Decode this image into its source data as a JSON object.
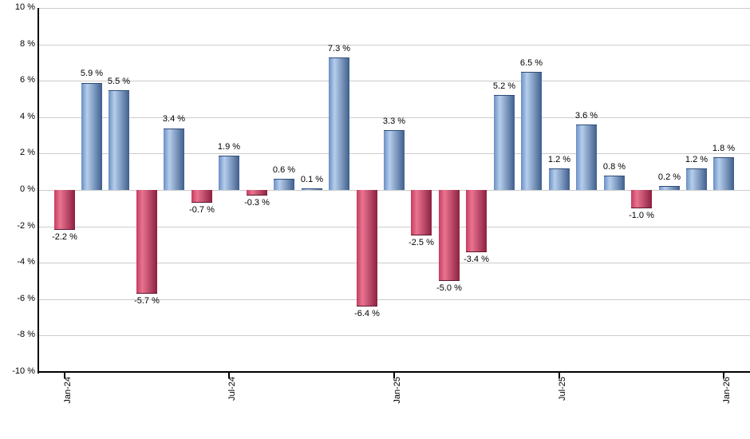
{
  "chart_data": {
    "type": "bar",
    "title": "",
    "xlabel": "",
    "ylabel": "",
    "unit": "%",
    "ylim": [
      -10,
      10
    ],
    "grid": true,
    "legend": "none",
    "categories": [
      "Jan-24",
      "Feb-24",
      "Mar-24",
      "Apr-24",
      "May-24",
      "Jun-24",
      "Jul-24",
      "Aug-24",
      "Sep-24",
      "Oct-24",
      "Nov-24",
      "Dec-24",
      "Jan-25",
      "Feb-25",
      "Mar-25",
      "Apr-25",
      "May-25",
      "Jun-25",
      "Jul-25",
      "Aug-25",
      "Sep-25",
      "Oct-25",
      "Nov-25",
      "Dec-25",
      "Jan-26"
    ],
    "values": [
      -2.2,
      5.9,
      5.5,
      -5.7,
      3.4,
      -0.7,
      1.9,
      -0.3,
      0.6,
      0.1,
      7.3,
      -6.4,
      3.3,
      -2.5,
      -5.0,
      -3.4,
      5.2,
      6.5,
      1.2,
      3.6,
      0.8,
      -1.0,
      0.2,
      1.2,
      1.8
    ],
    "bar_labels": [
      "-2.2 %",
      "5.9 %",
      "5.5 %",
      "-5.7 %",
      "3.4 %",
      "-0.7 %",
      "1.9 %",
      "-0.3 %",
      "0.6 %",
      "0.1 %",
      "7.3 %",
      "-6.4 %",
      "3.3 %",
      "-2.5 %",
      "-5.0 %",
      "-3.4 %",
      "5.2 %",
      "6.5 %",
      "1.2 %",
      "3.6 %",
      "0.8 %",
      "-1.0 %",
      "0.2 %",
      "1.2 %",
      "1.8 %"
    ],
    "y_axis": {
      "ticks": [
        {
          "value": 10,
          "label": "10 %"
        },
        {
          "value": 8,
          "label": "8 %"
        },
        {
          "value": 6,
          "label": "6 %"
        },
        {
          "value": 4,
          "label": "4 %"
        },
        {
          "value": 2,
          "label": "2 %"
        },
        {
          "value": 0,
          "label": "0 %"
        },
        {
          "value": -2,
          "label": "-2 %"
        },
        {
          "value": -4,
          "label": "-4 %"
        },
        {
          "value": -6,
          "label": "-6 %"
        },
        {
          "value": -8,
          "label": "-8 %"
        },
        {
          "value": -10,
          "label": "-10 %"
        }
      ]
    },
    "x_axis": {
      "ticks": [
        {
          "month": 0,
          "label": "Jan-24"
        },
        {
          "month": 6,
          "label": "Jul-24"
        },
        {
          "month": 12,
          "label": "Jan-25"
        },
        {
          "month": 18,
          "label": "Jul-25"
        },
        {
          "month": 24,
          "label": "Jan-26"
        }
      ]
    },
    "colors": {
      "positive_gradient": [
        "#6a8ec3",
        "#b6ceec",
        "#3f5e8c"
      ],
      "positive_edge": "#2f4c78",
      "negative_gradient": [
        "#c43d60",
        "#e97390",
        "#8c2040"
      ],
      "negative_edge": "#5f1830",
      "grid": "#cccccc",
      "axis": "#000000",
      "text": "#000000",
      "background": "#ffffff"
    }
  }
}
